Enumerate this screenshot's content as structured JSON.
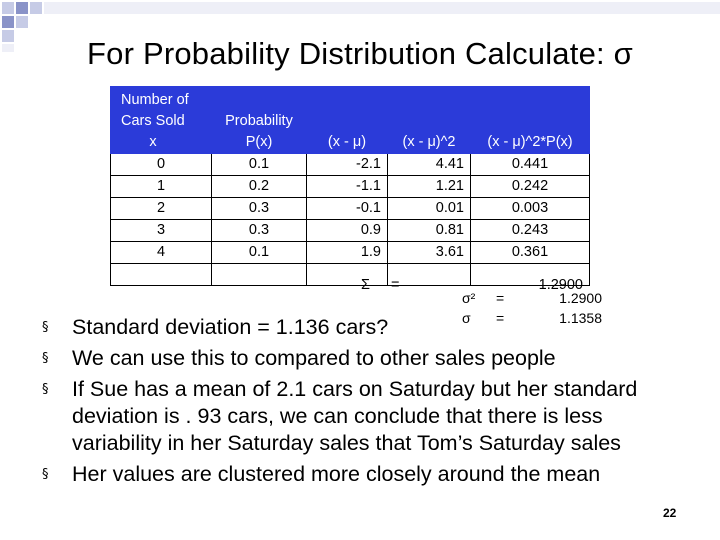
{
  "slide": {
    "title": "For Probability Distribution Calculate: σ",
    "page_number": "22"
  },
  "table": {
    "headers": {
      "cars_sold": [
        "Number of",
        "Cars Sold",
        "x"
      ],
      "probability": [
        "Probability",
        "P(x)"
      ],
      "deviation": "(x - μ)",
      "deviation_sq": "(x - μ)^2",
      "weighted": "(x - μ)^2*P(x)"
    },
    "rows": [
      {
        "x": "0",
        "p": "0.1",
        "dev": "-2.1",
        "dev_sq": "4.41",
        "weighted": "0.441"
      },
      {
        "x": "1",
        "p": "0.2",
        "dev": "-1.1",
        "dev_sq": "1.21",
        "weighted": "0.242"
      },
      {
        "x": "2",
        "p": "0.3",
        "dev": "-0.1",
        "dev_sq": "0.01",
        "weighted": "0.003"
      },
      {
        "x": "3",
        "p": "0.3",
        "dev": "0.9",
        "dev_sq": "0.81",
        "weighted": "0.243"
      },
      {
        "x": "4",
        "p": "0.1",
        "dev": "1.9",
        "dev_sq": "3.61",
        "weighted": "0.361"
      }
    ],
    "sum": {
      "symbol": "Σ",
      "eq": "=",
      "value": "1.2900"
    }
  },
  "stats": {
    "variance": {
      "symbol": "σ²",
      "eq": "=",
      "value": "1.2900"
    },
    "std_dev": {
      "symbol": "σ",
      "eq": "=",
      "value": "1.1358"
    }
  },
  "bullets": [
    "Standard deviation = 1.136 cars?",
    "We can use this to compared to other sales people",
    "If Sue has a mean of 2.1 cars on Saturday but her standard deviation is . 93 cars, we can conclude that there is less variability in her Saturday sales that Tom’s Saturday sales",
    "Her values are clustered more closely around the mean"
  ],
  "bullet_marker": "§",
  "colors": {
    "header_bg": "#2b3bd9",
    "header_text": "#ffffff",
    "corner_squares": [
      "#c6cbe6",
      "#8a93c8"
    ]
  }
}
